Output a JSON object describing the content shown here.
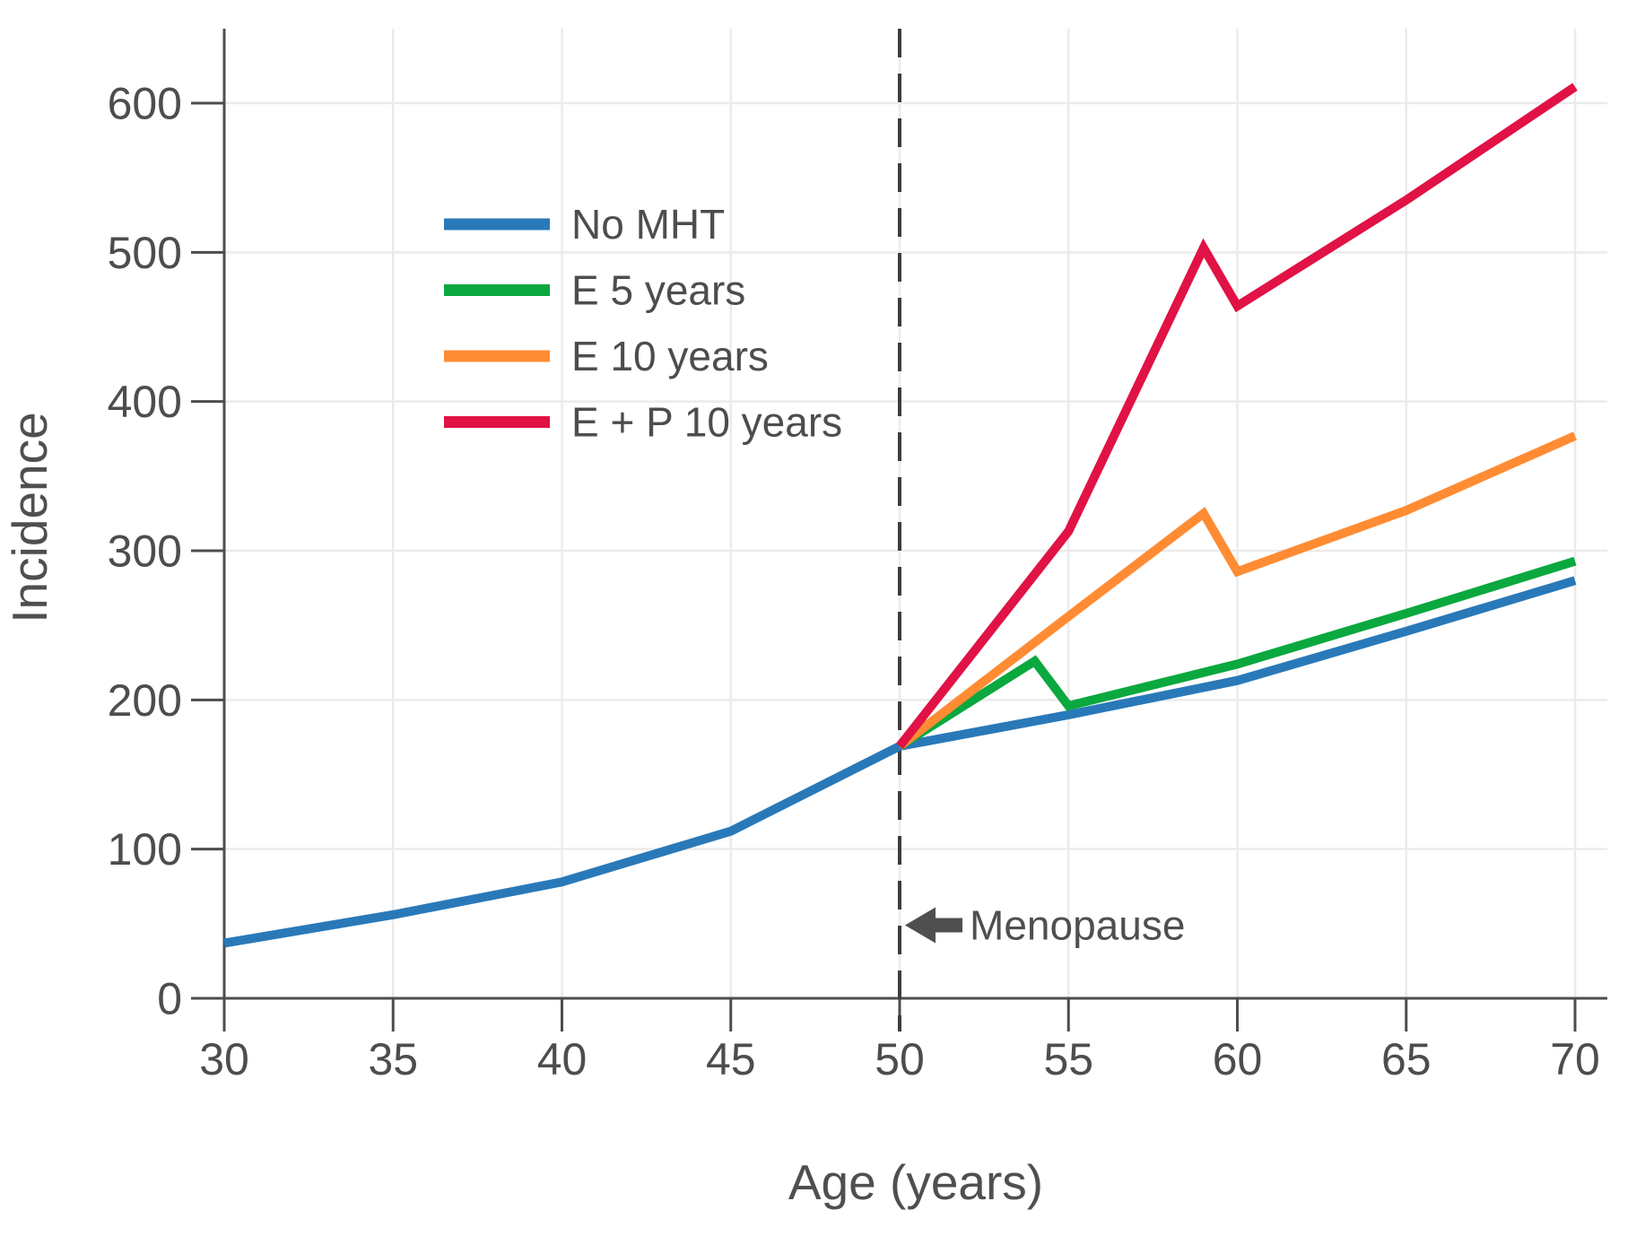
{
  "figure": {
    "background": "#ffffff",
    "text_color": "#4d4d4d",
    "grid_color": "#ebebeb",
    "axis_color": "#4d4d4d"
  },
  "chart_data": {
    "type": "line",
    "title": "",
    "xlabel": "Age (years)",
    "ylabel": "Incidence",
    "xlim": [
      30,
      70
    ],
    "ylim": [
      0,
      650
    ],
    "x_ticks": [
      30,
      35,
      40,
      45,
      50,
      55,
      60,
      65,
      70
    ],
    "y_ticks": [
      0,
      100,
      200,
      300,
      400,
      500,
      600
    ],
    "grid": true,
    "legend_position": "upper-left-inside",
    "series": [
      {
        "name": "No MHT",
        "color": "#2979b9",
        "points": [
          [
            30,
            37
          ],
          [
            35,
            56
          ],
          [
            40,
            78
          ],
          [
            45,
            112
          ],
          [
            50,
            169
          ],
          [
            55,
            190
          ],
          [
            60,
            213
          ],
          [
            65,
            246
          ],
          [
            70,
            280
          ]
        ]
      },
      {
        "name": "E 5 years",
        "color": "#0aa83e",
        "points": [
          [
            50,
            169
          ],
          [
            54,
            226
          ],
          [
            55,
            196
          ],
          [
            60,
            224
          ],
          [
            65,
            258
          ],
          [
            70,
            293
          ]
        ]
      },
      {
        "name": "E 10 years",
        "color": "#ff8c33",
        "points": [
          [
            50,
            169
          ],
          [
            55,
            256
          ],
          [
            59,
            325
          ],
          [
            60,
            286
          ],
          [
            65,
            327
          ],
          [
            70,
            377
          ]
        ]
      },
      {
        "name": "E + P 10 years",
        "color": "#e11245",
        "points": [
          [
            50,
            169
          ],
          [
            55,
            313
          ],
          [
            59,
            503
          ],
          [
            60,
            464
          ],
          [
            65,
            535
          ],
          [
            70,
            611
          ]
        ]
      }
    ],
    "annotations": [
      {
        "type": "vline",
        "x": 50,
        "style": "dashed",
        "color": "#3d3d3d"
      },
      {
        "type": "arrow-label",
        "text": "Menopause",
        "x": 50,
        "y": 49,
        "direction": "left",
        "color": "#4f4f4f"
      }
    ]
  }
}
